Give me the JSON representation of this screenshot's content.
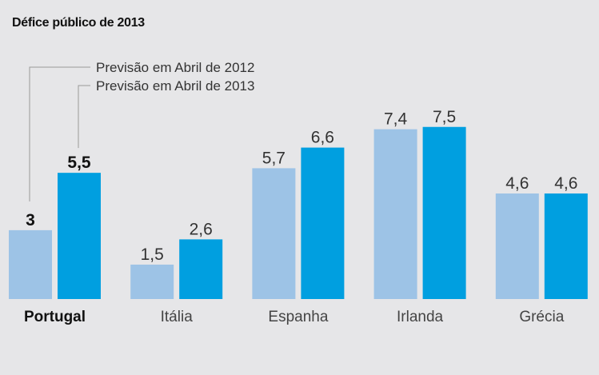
{
  "title": "Défice público de 2013",
  "chart_data": {
    "type": "bar",
    "title": "Défice público de 2013",
    "xlabel": "",
    "ylabel": "",
    "ylim": [
      0,
      8
    ],
    "grid": false,
    "legend": "top-left",
    "categories": [
      "Portugal",
      "Itália",
      "Espanha",
      "Irlanda",
      "Grécia"
    ],
    "highlight_category": "Portugal",
    "series": [
      {
        "name": "Previsão em Abril de 2012",
        "color": "#9dc3e6",
        "values": [
          3,
          1.5,
          5.7,
          7.4,
          4.6
        ],
        "labels": [
          "3",
          "1,5",
          "5,7",
          "7,4",
          "4,6"
        ]
      },
      {
        "name": "Previsão em Abril de 2013",
        "color": "#009fe0",
        "values": [
          5.5,
          2.6,
          6.6,
          7.5,
          4.6
        ],
        "labels": [
          "5,5",
          "2,6",
          "6,6",
          "7,5",
          "4,6"
        ]
      }
    ]
  }
}
